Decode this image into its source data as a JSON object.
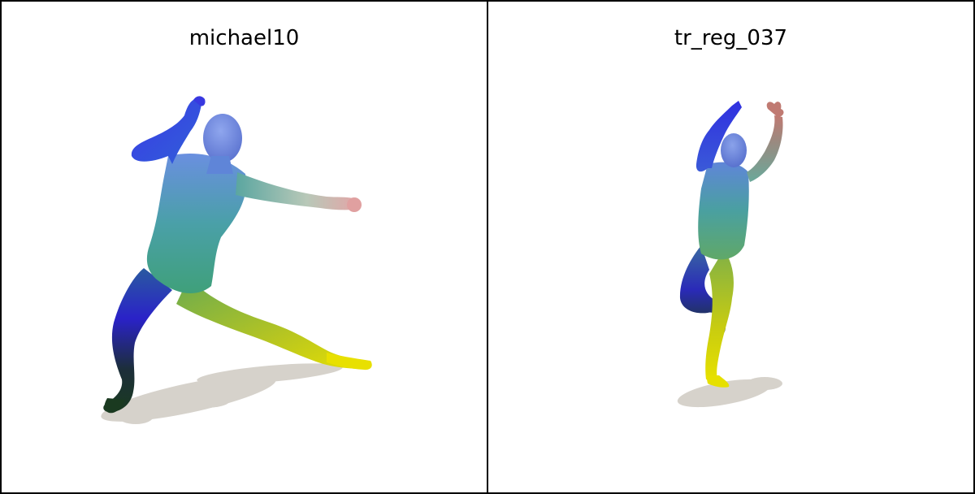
{
  "viewports": [
    {
      "title": "michael10"
    },
    {
      "title": "tr_reg_037"
    }
  ],
  "colors": {
    "shadow": "#d6d2cb",
    "deep_blue": "#2a2ad8",
    "light_blue": "#6f8fe0",
    "teal": "#3a9a8a",
    "green": "#7fb34a",
    "yellow": "#e6e000",
    "dark": "#1d3a24",
    "skin": "#d09a8a"
  }
}
